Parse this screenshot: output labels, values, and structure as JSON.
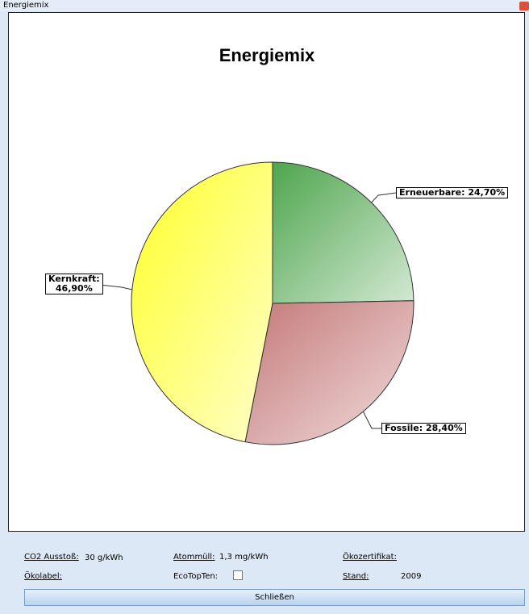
{
  "window": {
    "title": "Energiemix"
  },
  "chart_data": {
    "type": "pie",
    "title": "Energiemix",
    "values": [
      24.7,
      28.4,
      46.9
    ],
    "value_labels": [
      "Erneuerbare: 24,70%",
      "Fossile: 28,40%",
      "Kernkraft:\n46,90%"
    ],
    "colors": [
      "#4ea54e",
      "#c47878",
      "#ffff2a"
    ]
  },
  "footer": {
    "co2": {
      "label": "CO2 Ausstoß:",
      "value": "30 g/kWh"
    },
    "atommuell": {
      "label": "Atommüll:",
      "value": "1,3 mg/kWh"
    },
    "oekozertifikat": {
      "label": "Ökozertifikat:"
    },
    "oekolabel": {
      "label": "Ökolabel:"
    },
    "ecotopten": {
      "label": "EcoTopTen:"
    },
    "stand": {
      "label": "Stand:",
      "value": "2009"
    }
  },
  "button": {
    "label": "Schließen"
  }
}
